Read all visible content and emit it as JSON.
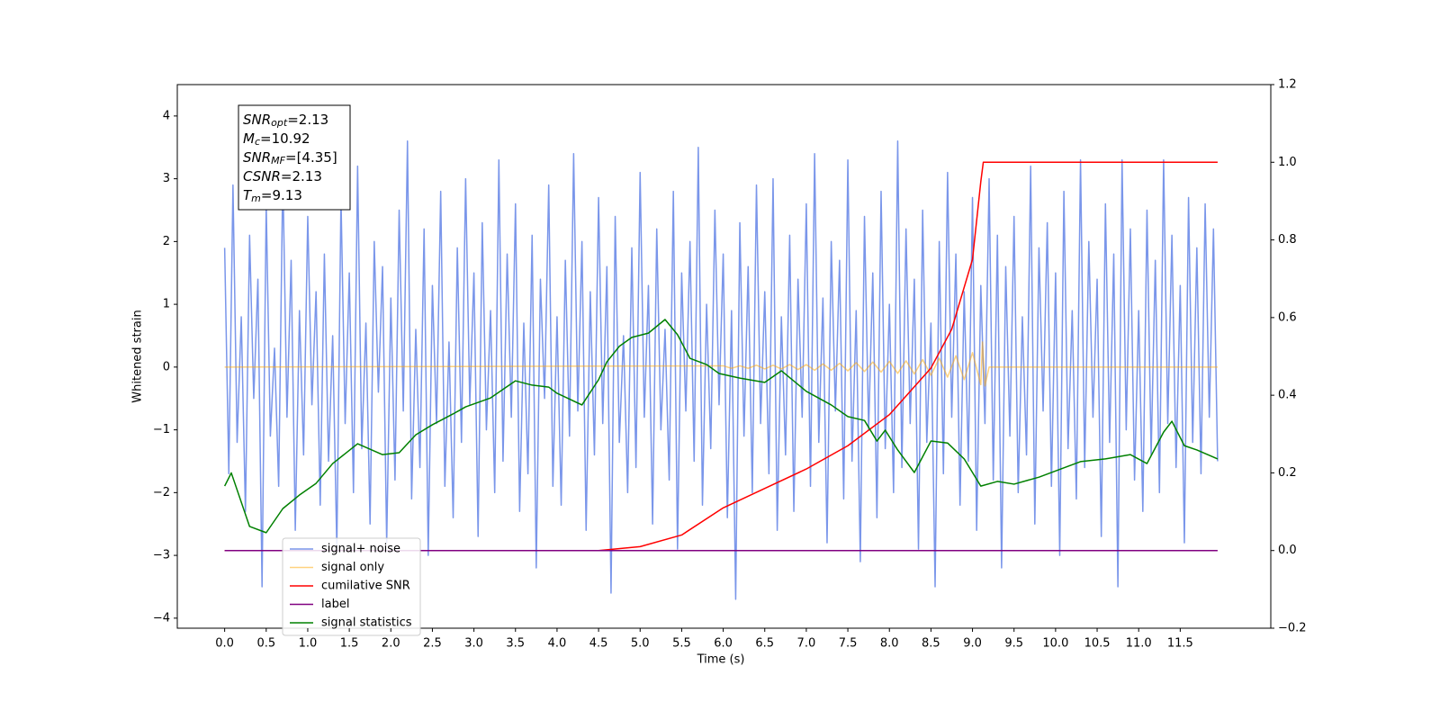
{
  "chart_data": {
    "type": "line",
    "xlabel": "Time (s)",
    "ylabel": "Whitened strain",
    "xlim": [
      -0.57,
      12.59
    ],
    "ylim": [
      -4.16,
      4.5
    ],
    "y2lim": [
      -0.2,
      1.2
    ],
    "xticks": [
      {
        "value": 0,
        "label": "0.0"
      },
      {
        "value": 0.5,
        "label": "0.5"
      },
      {
        "value": 1,
        "label": "1.0"
      },
      {
        "value": 1.5,
        "label": "1.5"
      },
      {
        "value": 2,
        "label": "2.0"
      },
      {
        "value": 2.5,
        "label": "2.5"
      },
      {
        "value": 3,
        "label": "3.0"
      },
      {
        "value": 3.5,
        "label": "3.5"
      },
      {
        "value": 4,
        "label": "4.0"
      },
      {
        "value": 4.5,
        "label": "4.5"
      },
      {
        "value": 5,
        "label": "5.0"
      },
      {
        "value": 5.5,
        "label": "5.5"
      },
      {
        "value": 6,
        "label": "6.0"
      },
      {
        "value": 6.5,
        "label": "6.5"
      },
      {
        "value": 7,
        "label": "7.0"
      },
      {
        "value": 7.5,
        "label": "7.5"
      },
      {
        "value": 8,
        "label": "8.0"
      },
      {
        "value": 8.5,
        "label": "8.5"
      },
      {
        "value": 9,
        "label": "9.0"
      },
      {
        "value": 9.5,
        "label": "9.5"
      },
      {
        "value": 10,
        "label": "10.0"
      },
      {
        "value": 10.5,
        "label": "10.5"
      },
      {
        "value": 11,
        "label": "11.0"
      },
      {
        "value": 11.5,
        "label": "11.5"
      }
    ],
    "yticks": [
      {
        "value": -4,
        "label": "−4"
      },
      {
        "value": -3,
        "label": "−3"
      },
      {
        "value": -2,
        "label": "−2"
      },
      {
        "value": -1,
        "label": "−1"
      },
      0,
      1,
      2,
      3,
      4
    ],
    "y2ticks": [
      {
        "value": -0.2,
        "label": "−0.2"
      },
      {
        "value": 0,
        "label": "0.0"
      },
      0.2,
      0.4,
      0.6,
      0.8,
      {
        "value": 1,
        "label": "1.0"
      },
      1.2
    ],
    "grid": false,
    "legend": "lower left",
    "annotations": [
      {
        "main": "SNR",
        "sub": "opt",
        "rest": "=2.13"
      },
      {
        "main": "M",
        "sub": "c",
        "rest": "=10.92"
      },
      {
        "main": "SNR",
        "sub": "MF",
        "rest": "=[4.35]"
      },
      {
        "main": "CSNR",
        "sub": null,
        "rest": "=2.13"
      },
      {
        "main": "T",
        "sub": "m",
        "rest": "=9.13"
      }
    ],
    "x": [
      0,
      0.05,
      0.1,
      0.15,
      0.2,
      0.25,
      0.3,
      0.35,
      0.4,
      0.45,
      0.5,
      0.55,
      0.6,
      0.65,
      0.7,
      0.75,
      0.8,
      0.85,
      0.9,
      0.95,
      1,
      1.05,
      1.1,
      1.15,
      1.2,
      1.25,
      1.3,
      1.35,
      1.4,
      1.45,
      1.5,
      1.55,
      1.6,
      1.65,
      1.7,
      1.75,
      1.8,
      1.85,
      1.9,
      1.95,
      2,
      2.05,
      2.1,
      2.15,
      2.2,
      2.25,
      2.3,
      2.35,
      2.4,
      2.45,
      2.5,
      2.55,
      2.6,
      2.65,
      2.7,
      2.75,
      2.8,
      2.85,
      2.9,
      2.95,
      3,
      3.05,
      3.1,
      3.15,
      3.2,
      3.25,
      3.3,
      3.35,
      3.4,
      3.45,
      3.5,
      3.55,
      3.6,
      3.65,
      3.7,
      3.75,
      3.8,
      3.85,
      3.9,
      3.95,
      4,
      4.05,
      4.1,
      4.15,
      4.2,
      4.25,
      4.3,
      4.35,
      4.4,
      4.45,
      4.5,
      4.55,
      4.6,
      4.65,
      4.7,
      4.75,
      4.8,
      4.85,
      4.9,
      4.95,
      5,
      5.05,
      5.1,
      5.15,
      5.2,
      5.25,
      5.3,
      5.35,
      5.4,
      5.45,
      5.5,
      5.55,
      5.6,
      5.65,
      5.7,
      5.75,
      5.8,
      5.85,
      5.9,
      5.95,
      6,
      6.05,
      6.1,
      6.15,
      6.2,
      6.25,
      6.3,
      6.35,
      6.4,
      6.45,
      6.5,
      6.55,
      6.6,
      6.65,
      6.7,
      6.75,
      6.8,
      6.85,
      6.9,
      6.95,
      7,
      7.05,
      7.1,
      7.15,
      7.2,
      7.25,
      7.3,
      7.35,
      7.4,
      7.45,
      7.5,
      7.55,
      7.6,
      7.65,
      7.7,
      7.75,
      7.8,
      7.85,
      7.9,
      7.95,
      8,
      8.05,
      8.1,
      8.15,
      8.2,
      8.25,
      8.3,
      8.35,
      8.4,
      8.45,
      8.5,
      8.55,
      8.6,
      8.65,
      8.7,
      8.75,
      8.8,
      8.85,
      8.9,
      8.95,
      9,
      9.05,
      9.1,
      9.15,
      9.2,
      9.25,
      9.3,
      9.35,
      9.4,
      9.45,
      9.5,
      9.55,
      9.6,
      9.65,
      9.7,
      9.75,
      9.8,
      9.85,
      9.9,
      9.95,
      10,
      10.05,
      10.1,
      10.15,
      10.2,
      10.25,
      10.3,
      10.35,
      10.4,
      10.45,
      10.5,
      10.55,
      10.6,
      10.65,
      10.7,
      10.75,
      10.8,
      10.85,
      10.9,
      10.95,
      11,
      11.05,
      11.1,
      11.15,
      11.2,
      11.25,
      11.3,
      11.35,
      11.4,
      11.45,
      11.5,
      11.55,
      11.6,
      11.65,
      11.7,
      11.75,
      11.8,
      11.85,
      11.9,
      11.95
    ],
    "series": [
      {
        "name": "signal+ noise",
        "color": "#4169e1",
        "alpha": 0.7,
        "axis": "y",
        "values": [
          1.9,
          -1.7,
          2.9,
          -1.2,
          0.8,
          -2.3,
          2.1,
          -0.5,
          1.4,
          -3.5,
          2.6,
          -1.1,
          0.3,
          -1.9,
          3.1,
          -0.8,
          1.7,
          -2.6,
          0.9,
          -1.4,
          2.4,
          -0.6,
          1.2,
          -2.2,
          1.8,
          -1.5,
          0.5,
          -2.9,
          2.7,
          -0.9,
          1.5,
          -2.0,
          3.2,
          -1.3,
          0.7,
          -2.5,
          2.0,
          -0.4,
          1.6,
          -2.8,
          1.1,
          -1.8,
          2.5,
          -0.7,
          3.6,
          -2.1,
          0.6,
          -1.6,
          2.2,
          -3.0,
          1.3,
          -0.9,
          2.8,
          -1.9,
          0.4,
          -2.4,
          1.9,
          -1.2,
          3.0,
          -0.6,
          1.5,
          -2.7,
          2.3,
          -1.0,
          0.9,
          -2.0,
          3.3,
          -1.5,
          1.8,
          -0.8,
          2.6,
          -2.3,
          0.7,
          -1.7,
          2.1,
          -3.2,
          1.4,
          -0.5,
          2.9,
          -1.9,
          0.8,
          -2.2,
          1.7,
          -1.1,
          3.4,
          -0.7,
          2.0,
          -2.6,
          1.2,
          -1.4,
          2.7,
          -0.9,
          1.6,
          -3.6,
          2.4,
          -1.2,
          0.5,
          -2.0,
          1.9,
          -1.6,
          3.1,
          -0.8,
          1.3,
          -2.5,
          2.2,
          -1.0,
          0.6,
          -1.8,
          2.8,
          -2.9,
          1.5,
          -0.7,
          2.0,
          -1.5,
          3.5,
          -2.2,
          1.0,
          -1.3,
          2.5,
          -0.6,
          1.8,
          -2.4,
          0.9,
          -3.7,
          2.3,
          -1.1,
          1.6,
          -2.0,
          2.9,
          -0.9,
          1.2,
          -1.7,
          3.0,
          -2.6,
          0.8,
          -1.4,
          2.1,
          -2.3,
          1.4,
          -0.8,
          2.6,
          -1.9,
          3.4,
          -1.2,
          1.1,
          -2.8,
          2.0,
          -0.7,
          1.7,
          -2.1,
          3.3,
          -1.5,
          0.9,
          -3.1,
          2.4,
          -1.0,
          1.5,
          -2.4,
          2.8,
          -1.3,
          1.0,
          -2.0,
          3.6,
          -1.6,
          2.2,
          -0.9,
          1.4,
          -2.9,
          2.5,
          -1.2,
          0.7,
          -3.5,
          2.0,
          -1.7,
          3.1,
          -0.8,
          1.8,
          -2.2,
          1.2,
          -1.5,
          2.7,
          -2.6,
          1.3,
          -0.9,
          3.0,
          -1.8,
          2.1,
          -3.2,
          1.6,
          -1.1,
          2.4,
          -2.0,
          0.8,
          -1.4,
          3.2,
          -2.5,
          1.9,
          -0.7,
          2.3,
          -1.9,
          1.5,
          -3.0,
          2.8,
          -1.3,
          0.9,
          -2.1,
          3.3,
          -1.6,
          2.0,
          -0.8,
          1.4,
          -2.7,
          2.6,
          -1.2,
          1.8,
          -3.5,
          3.3,
          -1.0,
          2.2,
          -1.8,
          0.9,
          -2.3,
          2.5,
          -1.4,
          1.7,
          -2.0,
          3.3,
          -0.9,
          2.1,
          -1.6,
          1.3,
          -2.8,
          2.7,
          -1.2,
          1.9,
          -1.7,
          2.6,
          -0.8,
          2.2,
          -1.5
        ]
      },
      {
        "name": "signal only",
        "color": "#ffa500",
        "alpha": 0.5,
        "axis": "y",
        "x": [
          0,
          6.0,
          6.1,
          6.2,
          6.3,
          6.4,
          6.5,
          6.6,
          6.7,
          6.8,
          6.9,
          7.0,
          7.1,
          7.2,
          7.3,
          7.4,
          7.5,
          7.6,
          7.7,
          7.8,
          7.9,
          8.0,
          8.1,
          8.2,
          8.3,
          8.4,
          8.5,
          8.6,
          8.7,
          8.8,
          8.9,
          9.0,
          9.1,
          9.12,
          9.15,
          9.2,
          11.95
        ],
        "values": [
          0,
          0.02,
          -0.02,
          0.02,
          -0.02,
          0.03,
          -0.03,
          0.03,
          -0.03,
          0.04,
          -0.04,
          0.04,
          -0.05,
          0.05,
          -0.05,
          0.06,
          -0.06,
          0.07,
          -0.07,
          0.08,
          -0.08,
          0.09,
          -0.1,
          0.1,
          -0.11,
          0.12,
          -0.13,
          0.14,
          -0.16,
          0.18,
          -0.2,
          0.23,
          -0.28,
          0.4,
          -0.3,
          0,
          0
        ]
      },
      {
        "name": "cumilative SNR",
        "color": "#ff0000",
        "alpha": 1,
        "axis": "y2",
        "x": [
          0,
          4.5,
          5.0,
          5.5,
          6.0,
          6.5,
          7.0,
          7.5,
          8.0,
          8.5,
          8.75,
          9.0,
          9.1,
          9.13,
          11.95
        ],
        "values": [
          0,
          0,
          0.01,
          0.04,
          0.11,
          0.16,
          0.21,
          0.27,
          0.35,
          0.47,
          0.57,
          0.75,
          0.95,
          1.0,
          1.0
        ]
      },
      {
        "name": "label",
        "color": "#800080",
        "alpha": 1,
        "axis": "y2",
        "x": [
          0,
          11.95
        ],
        "values": [
          0,
          0
        ]
      },
      {
        "name": "signal statistics",
        "color": "#008000",
        "alpha": 1,
        "axis": "y2",
        "x": [
          0,
          0.08,
          0.3,
          0.5,
          0.7,
          0.9,
          1.1,
          1.3,
          1.6,
          1.9,
          2.1,
          2.3,
          2.5,
          2.75,
          2.9,
          3.2,
          3.5,
          3.7,
          3.9,
          4.0,
          4.3,
          4.5,
          4.6,
          4.75,
          4.9,
          5.1,
          5.3,
          5.45,
          5.6,
          5.8,
          5.95,
          6.2,
          6.5,
          6.7,
          7.0,
          7.3,
          7.5,
          7.7,
          7.85,
          7.95,
          8.1,
          8.3,
          8.5,
          8.7,
          8.9,
          9.1,
          9.3,
          9.5,
          9.8,
          10.1,
          10.3,
          10.6,
          10.9,
          11.1,
          11.3,
          11.4,
          11.55,
          11.7,
          11.95
        ],
        "values": [
          0.166,
          0.2,
          0.062,
          0.046,
          0.108,
          0.143,
          0.173,
          0.224,
          0.275,
          0.247,
          0.252,
          0.298,
          0.324,
          0.352,
          0.37,
          0.393,
          0.437,
          0.426,
          0.421,
          0.405,
          0.375,
          0.44,
          0.486,
          0.526,
          0.549,
          0.56,
          0.595,
          0.556,
          0.495,
          0.479,
          0.456,
          0.444,
          0.433,
          0.463,
          0.41,
          0.375,
          0.345,
          0.335,
          0.282,
          0.31,
          0.259,
          0.201,
          0.282,
          0.277,
          0.236,
          0.166,
          0.178,
          0.171,
          0.189,
          0.213,
          0.229,
          0.236,
          0.247,
          0.224,
          0.305,
          0.333,
          0.27,
          0.259,
          0.236
        ]
      }
    ]
  }
}
